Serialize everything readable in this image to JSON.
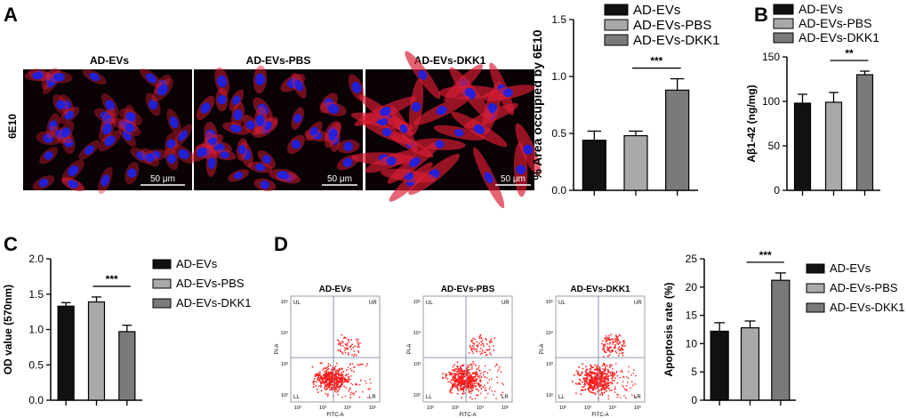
{
  "colors": {
    "black_bar": "#111111",
    "gray_bar": "#a9a9ab",
    "dark_gray_bar": "#7a7a7d",
    "micro_bg": "#0a0205",
    "nucleus": "#1b22e6",
    "cytoplasm": "#d81c34",
    "flow_dot": "#ff1a1a",
    "flow_bg": "#ffffff"
  },
  "panels": {
    "A": {
      "letter": "A",
      "stain_label": "6E10",
      "images": [
        {
          "title": "AD-EVs",
          "scale": "50 μm"
        },
        {
          "title": "AD-EVs-PBS",
          "scale": "50 μm"
        },
        {
          "title": "AD-EVs-DKK1",
          "scale": "50 μm"
        }
      ]
    },
    "B": {
      "letter": "B"
    },
    "C": {
      "letter": "C"
    },
    "D": {
      "letter": "D",
      "flow_plots": [
        {
          "title": "AD-EVs"
        },
        {
          "title": "AD-EVs-PBS"
        },
        {
          "title": "AD-EVs-DKK1"
        }
      ],
      "quadrants": [
        "UL",
        "UR",
        "LL",
        "LR"
      ],
      "flow_y_axis": "PI-A",
      "flow_x_axis": "FITC-A",
      "flow_ticks": [
        "10²",
        "10³",
        "10⁴",
        "10⁵"
      ]
    }
  },
  "legend_entries": [
    "AD-EVs",
    "AD-EVs-PBS",
    "AD-EVs-DKK1"
  ],
  "chart_data": [
    {
      "id": "area_6e10",
      "type": "bar",
      "categories": [
        "AD-EVs",
        "AD-EVs-PBS",
        "AD-EVs-DKK1"
      ],
      "values": [
        0.44,
        0.48,
        0.88
      ],
      "errors": [
        0.08,
        0.04,
        0.1
      ],
      "ylabel": "% Area occupied by 6E10",
      "ylim": [
        0,
        1.5
      ],
      "yticks": [
        "0.0",
        "0.5",
        "1.0",
        "1.5"
      ],
      "significance": {
        "label": "***",
        "between": [
          1,
          2
        ]
      },
      "legend": "top"
    },
    {
      "id": "abeta42",
      "type": "bar",
      "categories": [
        "AD-EVs",
        "AD-EVs-PBS",
        "AD-EVs-DKK1"
      ],
      "values": [
        98,
        99,
        130
      ],
      "errors": [
        10,
        11,
        4
      ],
      "ylabel": "Aβ1-42 (ng/mg)",
      "ylim": [
        0,
        150
      ],
      "yticks": [
        "0",
        "50",
        "100",
        "150"
      ],
      "significance": {
        "label": "**",
        "between": [
          1,
          2
        ]
      },
      "legend": "top"
    },
    {
      "id": "od_value",
      "type": "bar",
      "categories": [
        "AD-EVs",
        "AD-EVs-PBS",
        "AD-EVs-DKK1"
      ],
      "values": [
        1.33,
        1.39,
        0.97
      ],
      "errors": [
        0.05,
        0.07,
        0.09
      ],
      "ylabel": "OD value (570nm)",
      "ylim": [
        0,
        2.0
      ],
      "yticks": [
        "0.0",
        "0.5",
        "1.0",
        "1.5",
        "2.0"
      ],
      "significance": {
        "label": "***",
        "between": [
          1,
          2
        ]
      },
      "legend": "right"
    },
    {
      "id": "apoptosis",
      "type": "bar",
      "categories": [
        "AD-EVs",
        "AD-EVs-PBS",
        "AD-EVs-DKK1"
      ],
      "values": [
        12.2,
        12.8,
        21.2
      ],
      "errors": [
        1.5,
        1.2,
        1.3
      ],
      "ylabel": "Apoptosis rate (%)",
      "ylim": [
        0,
        25
      ],
      "yticks": [
        "0",
        "5",
        "10",
        "15",
        "20",
        "25"
      ],
      "significance": {
        "label": "***",
        "between": [
          1,
          2
        ]
      },
      "legend": "right"
    }
  ]
}
